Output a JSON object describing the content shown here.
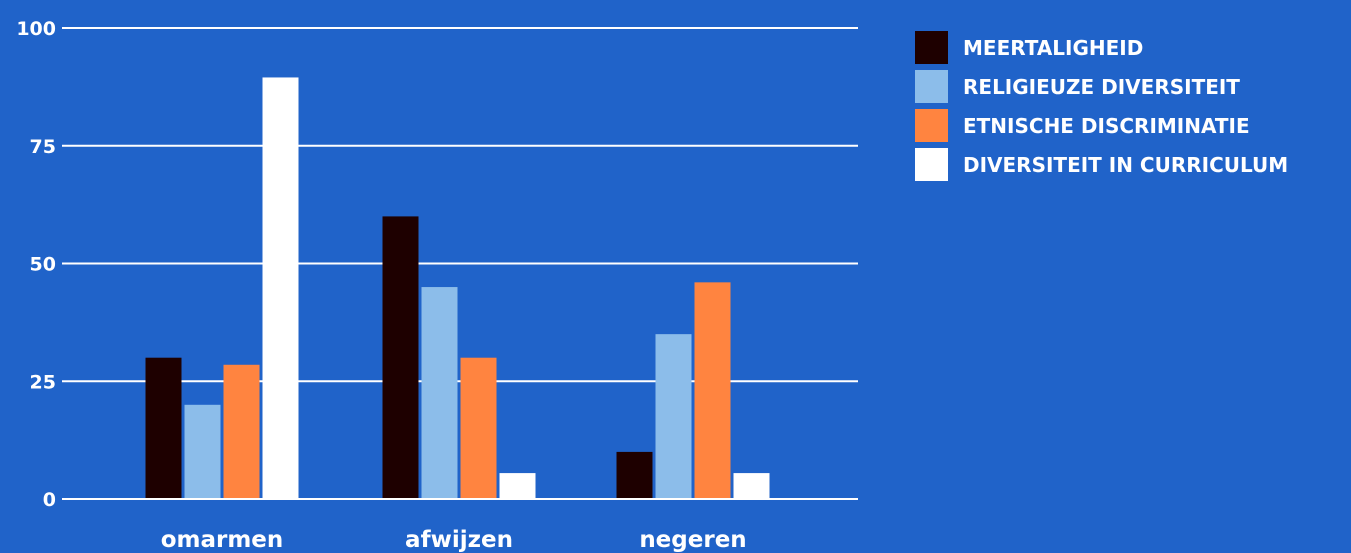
{
  "chart_data": {
    "type": "bar",
    "title": "",
    "xlabel": "",
    "ylabel": "",
    "ylim": [
      0,
      100
    ],
    "yticks": [
      0,
      25,
      50,
      75,
      100
    ],
    "grid": true,
    "legend_position": "top-right",
    "categories": [
      "omarmen",
      "afwijzen",
      "negeren"
    ],
    "series": [
      {
        "name": "MEERTALIGHEID",
        "color": "#1e0000",
        "values": [
          30,
          60,
          10
        ]
      },
      {
        "name": "RELIGIEUZE DIVERSITEIT",
        "color": "#8cbdea",
        "values": [
          20,
          45,
          35
        ]
      },
      {
        "name": "ETNISCHE DISCRIMINATIE",
        "color": "#ff8440",
        "values": [
          28.5,
          30,
          46
        ]
      },
      {
        "name": "DIVERSITEIT IN CURRICULUM",
        "color": "#ffffff",
        "values": [
          89.5,
          5.5,
          5.5
        ]
      }
    ]
  }
}
